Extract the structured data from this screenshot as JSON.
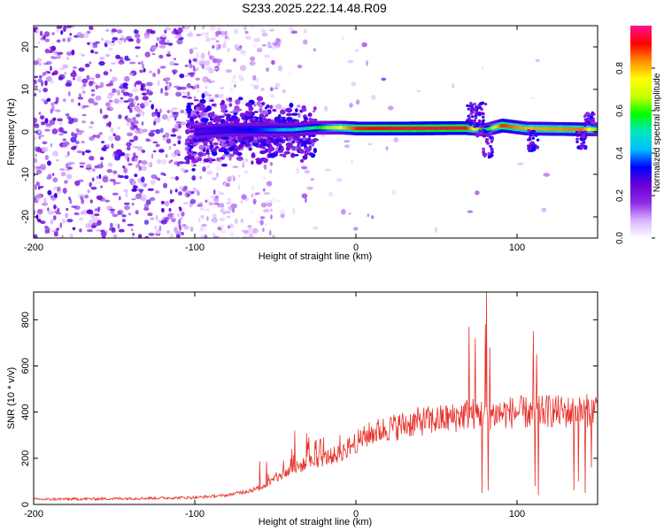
{
  "title": "S233.2025.222.14.48.R09",
  "chart_data": [
    {
      "type": "heatmap",
      "name": "spectrogram",
      "xlabel": "Height of straight line (km)",
      "ylabel": "Frequency (Hz)",
      "xlim": [
        -200,
        150
      ],
      "ylim": [
        -25,
        25
      ],
      "xticks": [
        -200,
        -100,
        0,
        100
      ],
      "yticks": [
        -20,
        -10,
        0,
        10,
        20
      ],
      "colorbar": {
        "label": "Normalized spectral amplitude",
        "range": [
          0,
          1
        ],
        "ticks": [
          "0.0",
          "0.2",
          "0.4",
          "0.6",
          "0.8"
        ],
        "colors": [
          "#ffffff",
          "#d9b3ff",
          "#8b2be2",
          "#6a00d8",
          "#0000ff",
          "#00bfff",
          "#00e5c0",
          "#00ff00",
          "#c8ff00",
          "#ffff00",
          "#ff8c00",
          "#ff0000",
          "#ff1493"
        ]
      },
      "signal_band": [
        {
          "x": -100,
          "freq": 0.0,
          "amp": 0.25
        },
        {
          "x": -80,
          "freq": 0.5,
          "amp": 0.3
        },
        {
          "x": -60,
          "freq": 0.5,
          "amp": 0.35
        },
        {
          "x": -40,
          "freq": 0.5,
          "amp": 0.45
        },
        {
          "x": -25,
          "freq": 1.0,
          "amp": 0.55
        },
        {
          "x": -10,
          "freq": 1.0,
          "amp": 0.75
        },
        {
          "x": 0,
          "freq": 0.8,
          "amp": 0.9
        },
        {
          "x": 30,
          "freq": 0.8,
          "amp": 0.95
        },
        {
          "x": 67,
          "freq": 0.9,
          "amp": 0.95
        },
        {
          "x": 80,
          "freq": 0.5,
          "amp": 0.5
        },
        {
          "x": 90,
          "freq": 1.5,
          "amp": 0.9
        },
        {
          "x": 105,
          "freq": 0.8,
          "amp": 0.8
        },
        {
          "x": 140,
          "freq": 0.6,
          "amp": 0.85
        },
        {
          "x": 150,
          "freq": 0.6,
          "amp": 0.6
        }
      ]
    },
    {
      "type": "line",
      "name": "snr",
      "xlabel": "Height of straight line (km)",
      "ylabel": "SNR (10 * v/v)",
      "xlim": [
        -200,
        150
      ],
      "ylim": [
        0,
        920
      ],
      "xticks": [
        -200,
        -100,
        0,
        100
      ],
      "yticks": [
        0,
        200,
        400,
        600,
        800
      ],
      "color": "#e8312a",
      "trend": [
        {
          "x": -200,
          "y": 22
        },
        {
          "x": -150,
          "y": 25
        },
        {
          "x": -100,
          "y": 30
        },
        {
          "x": -80,
          "y": 40
        },
        {
          "x": -60,
          "y": 70
        },
        {
          "x": -50,
          "y": 110
        },
        {
          "x": -40,
          "y": 150
        },
        {
          "x": -30,
          "y": 180
        },
        {
          "x": -20,
          "y": 200
        },
        {
          "x": -10,
          "y": 220
        },
        {
          "x": 0,
          "y": 270
        },
        {
          "x": 10,
          "y": 310
        },
        {
          "x": 20,
          "y": 330
        },
        {
          "x": 30,
          "y": 345
        },
        {
          "x": 40,
          "y": 360
        },
        {
          "x": 50,
          "y": 365
        },
        {
          "x": 60,
          "y": 375
        },
        {
          "x": 70,
          "y": 395
        },
        {
          "x": 80,
          "y": 390
        },
        {
          "x": 90,
          "y": 395
        },
        {
          "x": 100,
          "y": 400
        },
        {
          "x": 110,
          "y": 395
        },
        {
          "x": 120,
          "y": 405
        },
        {
          "x": 130,
          "y": 400
        },
        {
          "x": 140,
          "y": 400
        },
        {
          "x": 150,
          "y": 420
        }
      ],
      "spikes": [
        {
          "x": -45,
          "y": 190
        },
        {
          "x": -40,
          "y": 240
        },
        {
          "x": -38,
          "y": 320
        },
        {
          "x": -30,
          "y": 270
        },
        {
          "x": -25,
          "y": 280
        },
        {
          "x": -10,
          "y": 300
        },
        {
          "x": 70,
          "y": 770
        },
        {
          "x": 74,
          "y": 720
        },
        {
          "x": 78,
          "y": 50
        },
        {
          "x": 80,
          "y": 780
        },
        {
          "x": 81,
          "y": 920
        },
        {
          "x": 82,
          "y": 60
        },
        {
          "x": 83,
          "y": 680
        },
        {
          "x": 110,
          "y": 750
        },
        {
          "x": 111,
          "y": 80
        },
        {
          "x": 112,
          "y": 650
        },
        {
          "x": 113,
          "y": 40
        },
        {
          "x": 135,
          "y": 60
        },
        {
          "x": 138,
          "y": 100
        },
        {
          "x": 142,
          "y": 50
        },
        {
          "x": 146,
          "y": 160
        }
      ]
    }
  ]
}
